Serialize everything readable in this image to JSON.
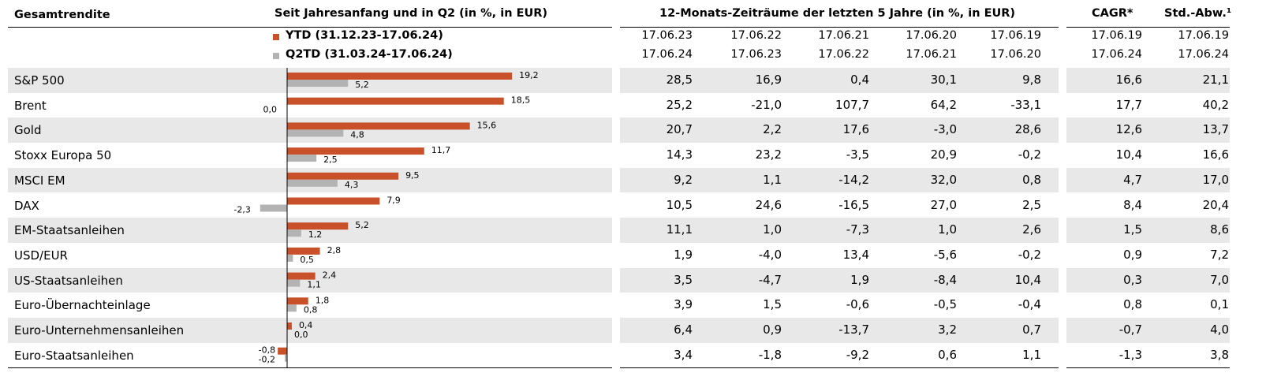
{
  "colors": {
    "ytd": "#c8512a",
    "q2td": "#b3b3b3",
    "band": "#e8e8e8"
  },
  "headers": {
    "label_col": "Gesamtrendite",
    "chart_col": "Seit Jahresanfang und in Q2 (in %, in EUR)",
    "periods_col": "12-Monats-Zeiträume der letzten 5 Jahre (in %, in EUR)",
    "cagr_col": "CAGR*",
    "std_col": "Std.-Abw.¹"
  },
  "legend": {
    "ytd": "YTD (31.12.23-17.06.24)",
    "q2td": "Q2TD (31.03.24-17.06.24)"
  },
  "period_dates": {
    "from": [
      "17.06.23",
      "17.06.22",
      "17.06.21",
      "17.06.20",
      "17.06.19"
    ],
    "to": [
      "17.06.24",
      "17.06.23",
      "17.06.22",
      "17.06.21",
      "17.06.20"
    ]
  },
  "cagr_dates": {
    "from": "17.06.19",
    "to": "17.06.24"
  },
  "std_dates": {
    "from": "17.06.19",
    "to": "17.06.24"
  },
  "rows": [
    {
      "name": "S&P 500",
      "periods": [
        "28,5",
        "16,9",
        "0,4",
        "30,1",
        "9,8"
      ],
      "cagr": "16,6",
      "std": "21,1"
    },
    {
      "name": "Brent",
      "periods": [
        "25,2",
        "-21,0",
        "107,7",
        "64,2",
        "-33,1"
      ],
      "cagr": "17,7",
      "std": "40,2"
    },
    {
      "name": "Gold",
      "periods": [
        "20,7",
        "2,2",
        "17,6",
        "-3,0",
        "28,6"
      ],
      "cagr": "12,6",
      "std": "13,7"
    },
    {
      "name": "Stoxx Europa 50",
      "periods": [
        "14,3",
        "23,2",
        "-3,5",
        "20,9",
        "-0,2"
      ],
      "cagr": "10,4",
      "std": "16,6"
    },
    {
      "name": "MSCI EM",
      "periods": [
        "9,2",
        "1,1",
        "-14,2",
        "32,0",
        "0,8"
      ],
      "cagr": "4,7",
      "std": "17,0"
    },
    {
      "name": "DAX",
      "periods": [
        "10,5",
        "24,6",
        "-16,5",
        "27,0",
        "2,5"
      ],
      "cagr": "8,4",
      "std": "20,4"
    },
    {
      "name": "EM-Staatsanleihen",
      "periods": [
        "11,1",
        "1,0",
        "-7,3",
        "1,0",
        "2,6"
      ],
      "cagr": "1,5",
      "std": "8,6"
    },
    {
      "name": "USD/EUR",
      "periods": [
        "1,9",
        "-4,0",
        "13,4",
        "-5,6",
        "-0,2"
      ],
      "cagr": "0,9",
      "std": "7,2"
    },
    {
      "name": "US-Staatsanleihen",
      "periods": [
        "3,5",
        "-4,7",
        "1,9",
        "-8,4",
        "10,4"
      ],
      "cagr": "0,3",
      "std": "7,0"
    },
    {
      "name": "Euro-Übernachteinlage",
      "periods": [
        "3,9",
        "1,5",
        "-0,6",
        "-0,5",
        "-0,4"
      ],
      "cagr": "0,8",
      "std": "0,1"
    },
    {
      "name": "Euro-Unternehmensanleihen",
      "periods": [
        "6,4",
        "0,9",
        "-13,7",
        "3,2",
        "0,7"
      ],
      "cagr": "-0,7",
      "std": "4,0"
    },
    {
      "name": "Euro-Staatsanleihen",
      "periods": [
        "3,4",
        "-1,8",
        "-9,2",
        "0,6",
        "1,1"
      ],
      "cagr": "-1,3",
      "std": "3,8"
    }
  ],
  "chart_data": {
    "type": "bar",
    "orientation": "horizontal",
    "title": "Seit Jahresanfang und in Q2 (in %, in EUR)",
    "categories": [
      "S&P 500",
      "Brent",
      "Gold",
      "Stoxx Europa 50",
      "MSCI EM",
      "DAX",
      "EM-Staatsanleihen",
      "USD/EUR",
      "US-Staatsanleihen",
      "Euro-Übernachteinlage",
      "Euro-Unternehmensanleihen",
      "Euro-Staatsanleihen"
    ],
    "series": [
      {
        "name": "YTD (31.12.23-17.06.24)",
        "values": [
          19.2,
          18.5,
          15.6,
          11.7,
          9.5,
          7.9,
          5.2,
          2.8,
          2.4,
          1.8,
          0.4,
          -0.8
        ],
        "labels": [
          "19,2",
          "18,5",
          "15,6",
          "11,7",
          "9,5",
          "7,9",
          "5,2",
          "2,8",
          "2,4",
          "1,8",
          "0,4",
          "-0,8"
        ]
      },
      {
        "name": "Q2TD (31.03.24-17.06.24)",
        "values": [
          5.2,
          0.0,
          4.8,
          2.5,
          4.3,
          -2.3,
          1.2,
          0.5,
          1.1,
          0.8,
          0.0,
          -0.2
        ],
        "labels": [
          "5,2",
          "0,0",
          "4,8",
          "2,5",
          "4,3",
          "-2,3",
          "1,2",
          "0,5",
          "1,1",
          "0,8",
          "0,0",
          "-0,2"
        ]
      }
    ],
    "legend": "top-left",
    "grid": false
  }
}
